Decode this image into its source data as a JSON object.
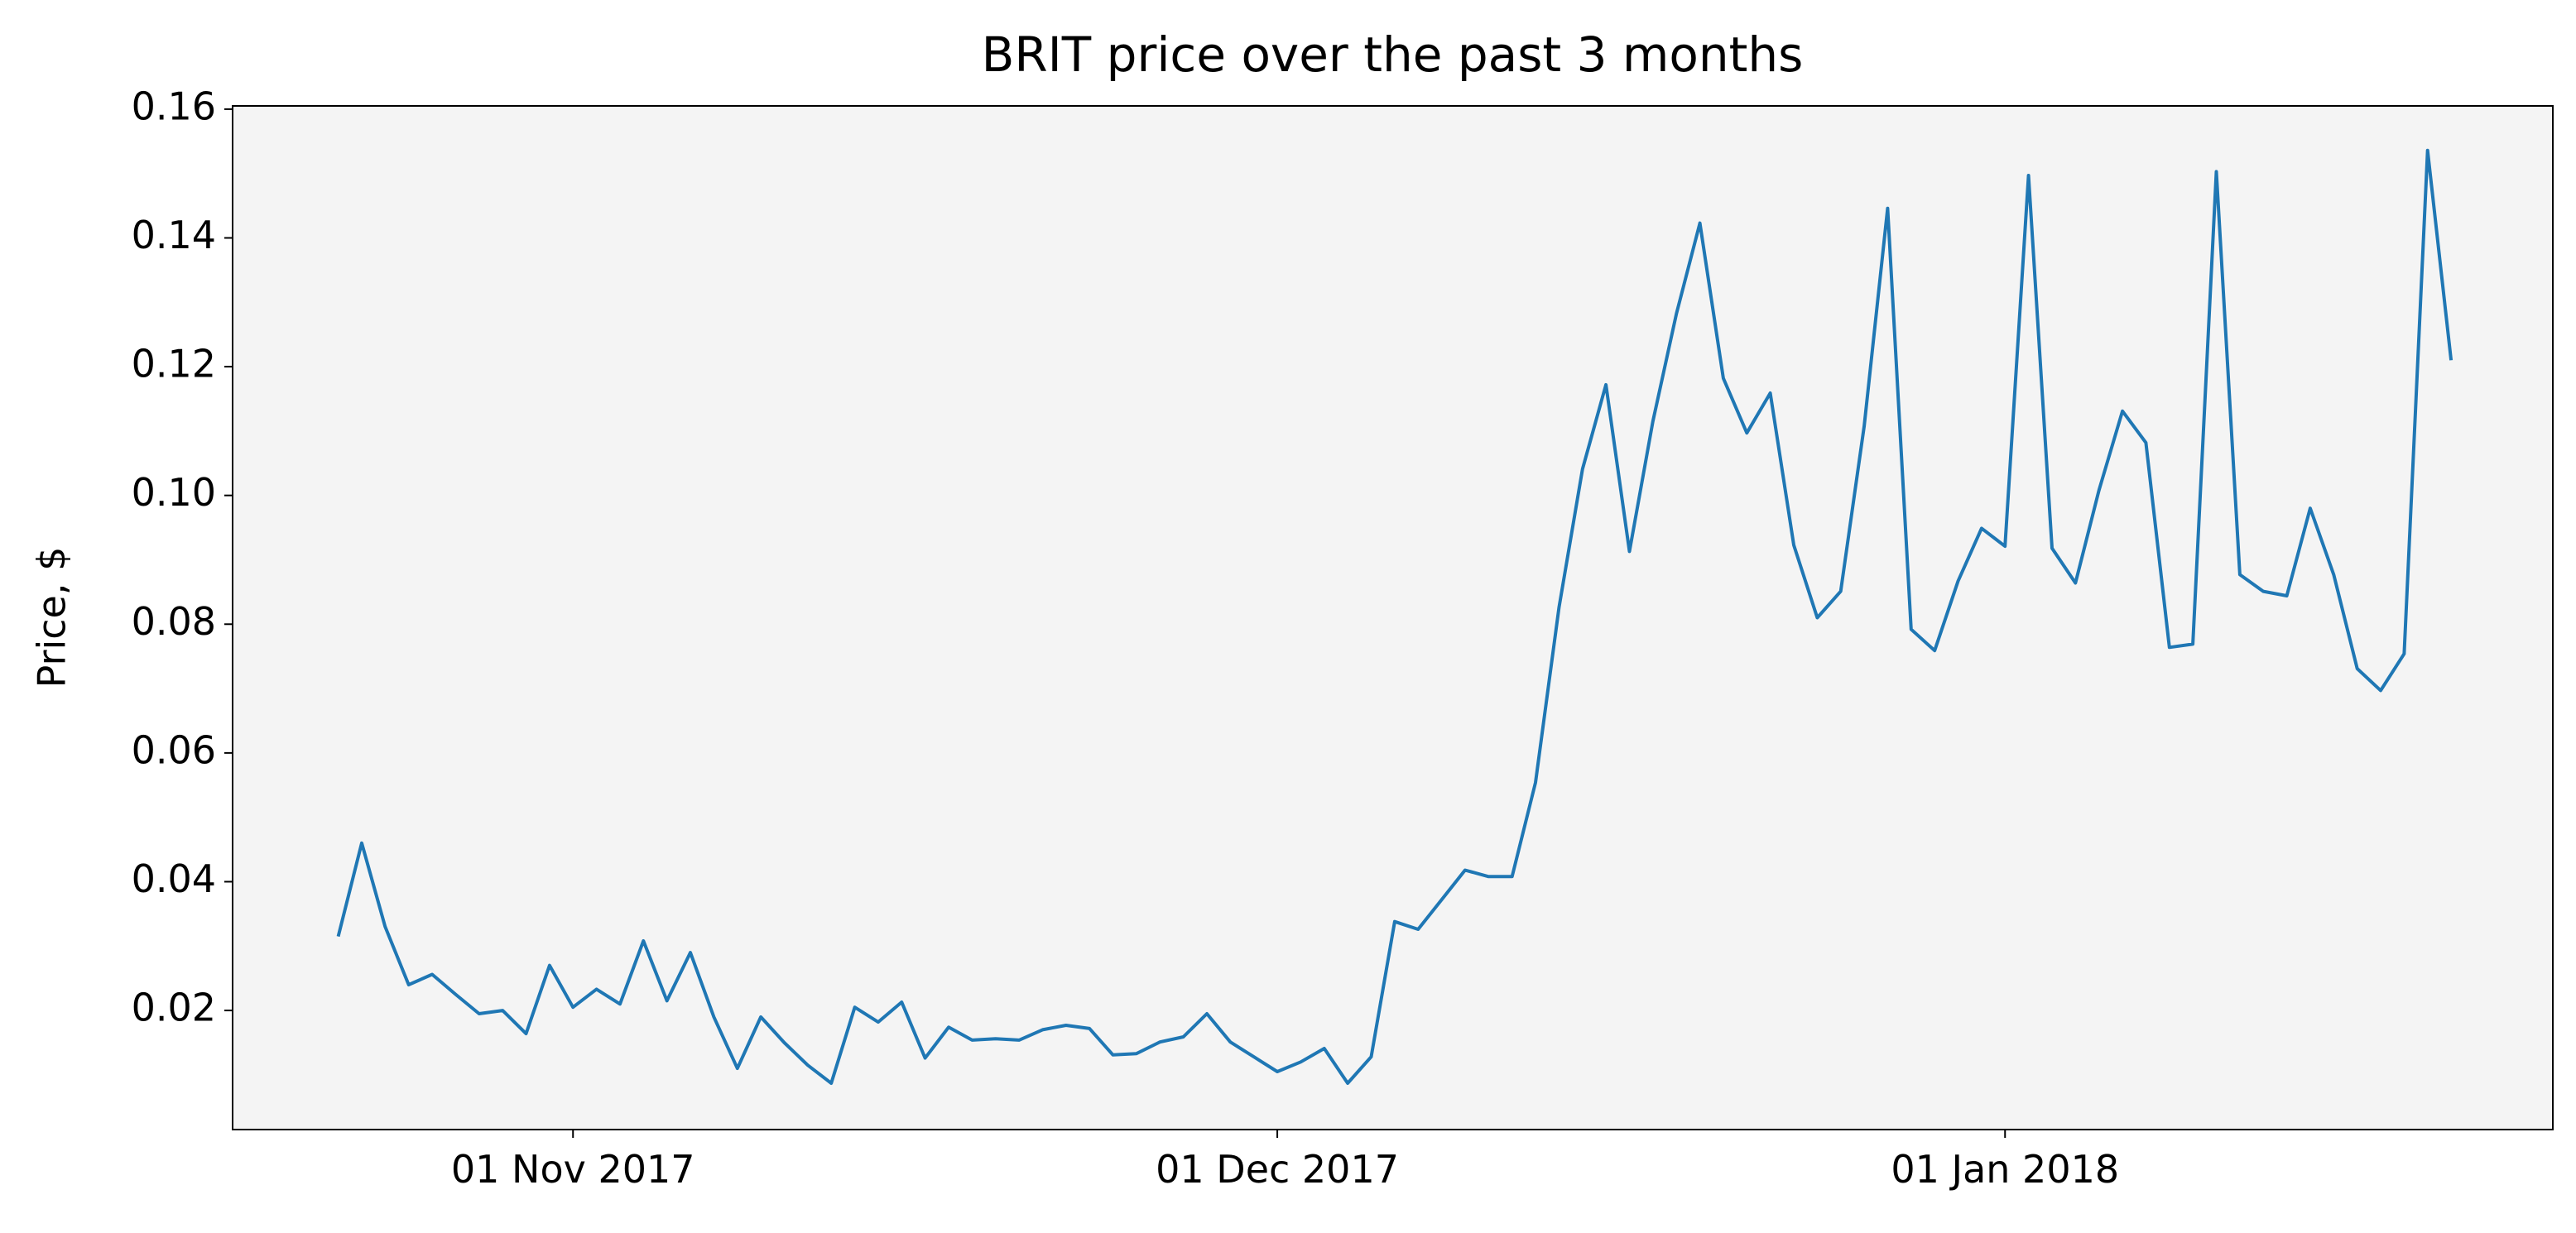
{
  "chart_data": {
    "type": "line",
    "title": "BRIT price over the past 3 months",
    "y_label": "Price, $",
    "x": [
      "2017-10-22",
      "2017-10-23",
      "2017-10-24",
      "2017-10-25",
      "2017-10-26",
      "2017-10-27",
      "2017-10-28",
      "2017-10-29",
      "2017-10-30",
      "2017-10-31",
      "2017-11-01",
      "2017-11-02",
      "2017-11-03",
      "2017-11-04",
      "2017-11-05",
      "2017-11-06",
      "2017-11-07",
      "2017-11-08",
      "2017-11-09",
      "2017-11-10",
      "2017-11-11",
      "2017-11-12",
      "2017-11-13",
      "2017-11-14",
      "2017-11-15",
      "2017-11-16",
      "2017-11-17",
      "2017-11-18",
      "2017-11-19",
      "2017-11-20",
      "2017-11-21",
      "2017-11-22",
      "2017-11-23",
      "2017-11-24",
      "2017-11-25",
      "2017-11-26",
      "2017-11-27",
      "2017-11-28",
      "2017-11-29",
      "2017-11-30",
      "2017-12-01",
      "2017-12-02",
      "2017-12-03",
      "2017-12-04",
      "2017-12-05",
      "2017-12-06",
      "2017-12-07",
      "2017-12-08",
      "2017-12-09",
      "2017-12-10",
      "2017-12-11",
      "2017-12-12",
      "2017-12-13",
      "2017-12-14",
      "2017-12-15",
      "2017-12-16",
      "2017-12-17",
      "2017-12-18",
      "2017-12-19",
      "2017-12-20",
      "2017-12-21",
      "2017-12-22",
      "2017-12-23",
      "2017-12-24",
      "2017-12-25",
      "2017-12-26",
      "2017-12-27",
      "2017-12-28",
      "2017-12-29",
      "2017-12-30",
      "2017-12-31",
      "2018-01-01",
      "2018-01-02",
      "2018-01-03",
      "2018-01-04",
      "2018-01-05",
      "2018-01-06",
      "2018-01-07",
      "2018-01-08",
      "2018-01-09",
      "2018-01-10",
      "2018-01-11",
      "2018-01-12",
      "2018-01-13",
      "2018-01-14",
      "2018-01-15",
      "2018-01-16",
      "2018-01-17",
      "2018-01-18",
      "2018-01-19",
      "2018-01-20"
    ],
    "series": [
      {
        "name": "BRIT",
        "color": "#1f77b4",
        "values": [
          0.0315,
          0.046,
          0.033,
          0.024,
          0.0256,
          0.0225,
          0.0195,
          0.02,
          0.0164,
          0.027,
          0.0205,
          0.0233,
          0.021,
          0.0308,
          0.0215,
          0.029,
          0.019,
          0.011,
          0.019,
          0.015,
          0.0115,
          0.0087,
          0.0205,
          0.0182,
          0.0213,
          0.0126,
          0.0174,
          0.0154,
          0.0156,
          0.0154,
          0.017,
          0.0177,
          0.0172,
          0.0131,
          0.0133,
          0.0151,
          0.0159,
          0.0195,
          0.0151,
          0.0128,
          0.0105,
          0.012,
          0.0141,
          0.0087,
          0.0128,
          0.0338,
          0.0326,
          0.0372,
          0.0418,
          0.0408,
          0.0408,
          0.0554,
          0.0826,
          0.1041,
          0.1172,
          0.0913,
          0.1115,
          0.1282,
          0.1423,
          0.1182,
          0.1097,
          0.1159,
          0.0923,
          0.081,
          0.0851,
          0.1108,
          0.1446,
          0.0792,
          0.0759,
          0.0867,
          0.0949,
          0.0921,
          0.1497,
          0.0918,
          0.0864,
          0.1008,
          0.1131,
          0.1082,
          0.0764,
          0.0769,
          0.1503,
          0.0877,
          0.0851,
          0.0844,
          0.098,
          0.0877,
          0.0731,
          0.0697,
          0.0754,
          0.1536,
          0.121
        ]
      }
    ],
    "xlim": [
      "2017-10-17T12:00:00Z",
      "2018-01-24T08:00:00Z"
    ],
    "xticks": [
      {
        "value": "2017-11-01",
        "label": "01 Nov 2017"
      },
      {
        "value": "2017-12-01",
        "label": "01 Dec 2017"
      },
      {
        "value": "2018-01-01",
        "label": "01 Jan 2018"
      }
    ],
    "ylim": [
      0.0015,
      0.1605
    ],
    "yticks": [
      {
        "value": 0.02,
        "label": "0.02"
      },
      {
        "value": 0.04,
        "label": "0.04"
      },
      {
        "value": 0.06,
        "label": "0.06"
      },
      {
        "value": 0.08,
        "label": "0.08"
      },
      {
        "value": 0.1,
        "label": "0.10"
      },
      {
        "value": 0.12,
        "label": "0.12"
      },
      {
        "value": 0.14,
        "label": "0.14"
      },
      {
        "value": 0.16,
        "label": "0.16"
      }
    ],
    "plot_background": "#f4f4f4"
  }
}
